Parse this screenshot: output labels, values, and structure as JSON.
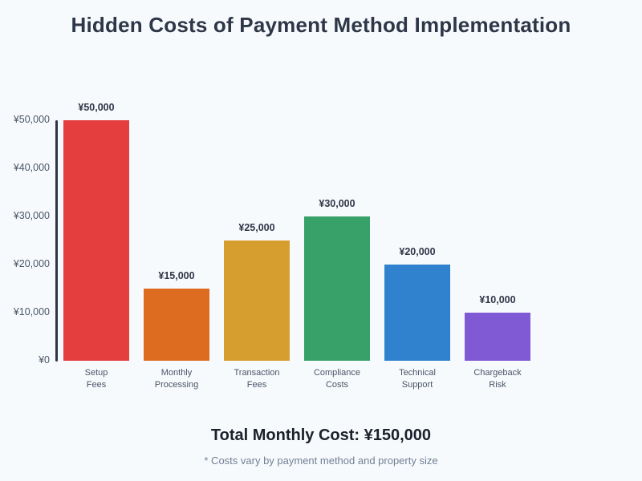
{
  "page": {
    "background": "#f7fafc",
    "title": "Hidden Costs of Payment Method Implementation",
    "total_line": "Total Monthly Cost: ¥150,000",
    "footnote": "* Costs vary by payment method and property size"
  },
  "chart_data": {
    "type": "bar",
    "title": "Hidden Costs of Payment Method Implementation",
    "categories": [
      "Setup Fees",
      "Monthly Processing",
      "Transaction Fees",
      "Compliance Costs",
      "Technical Support",
      "Chargeback Risk"
    ],
    "category_lines": [
      [
        "Setup",
        "Fees"
      ],
      [
        "Monthly",
        "Processing"
      ],
      [
        "Transaction",
        "Fees"
      ],
      [
        "Compliance",
        "Costs"
      ],
      [
        "Technical",
        "Support"
      ],
      [
        "Chargeback",
        "Risk"
      ]
    ],
    "values": [
      50000,
      15000,
      25000,
      30000,
      20000,
      10000
    ],
    "value_labels": [
      "¥50,000",
      "¥15,000",
      "¥25,000",
      "¥30,000",
      "¥20,000",
      "¥10,000"
    ],
    "bar_colors": [
      "#e53e3e",
      "#dd6b20",
      "#d69e2e",
      "#38a169",
      "#3182ce",
      "#805ad5"
    ],
    "y_ticks": [
      0,
      10000,
      20000,
      30000,
      40000,
      50000
    ],
    "y_tick_labels": [
      "¥0",
      "¥10,000",
      "¥20,000",
      "¥30,000",
      "¥40,000",
      "¥50,000"
    ],
    "ylim": [
      0,
      50000
    ],
    "xlabel": "",
    "ylabel": "",
    "grid": false,
    "legend": false,
    "total": "Total Monthly Cost: ¥150,000",
    "annotation": "* Costs vary by payment method and property size",
    "colors": {
      "axis": "#2d3748",
      "tick_text": "#4a5568",
      "value_text": "#2d3748",
      "title_text": "#2d3748",
      "footnote_text": "#718096",
      "background": "#f7fafc"
    }
  }
}
